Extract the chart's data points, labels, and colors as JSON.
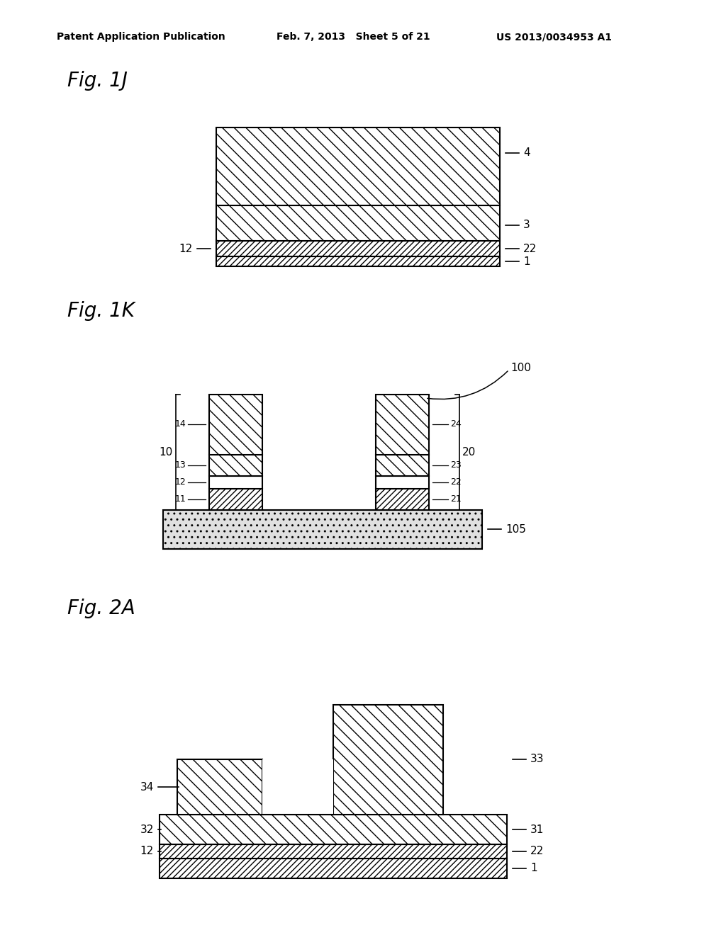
{
  "bg_color": "#ffffff",
  "header_left": "Patent Application Publication",
  "header_center": "Feb. 7, 2013   Sheet 5 of 21",
  "header_right": "US 2013/0034953 A1",
  "fig1j_label": "Fig. 1J",
  "fig1k_label": "Fig. 1K",
  "fig2a_label": "Fig. 2A",
  "line_color": "#000000"
}
